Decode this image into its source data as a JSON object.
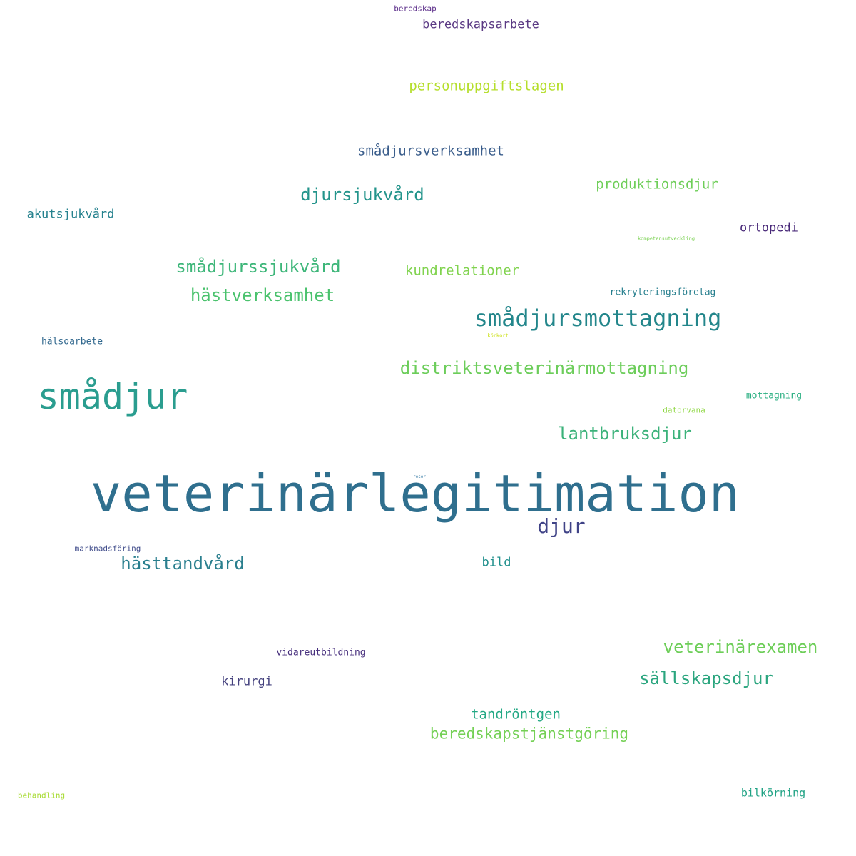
{
  "word_cloud": {
    "words": [
      {
        "text": "veterinärlegitimation",
        "color": "#2f6f8e"
      },
      {
        "text": "smådjur",
        "color": "#2a9d8f"
      },
      {
        "text": "smådjursmottagning",
        "color": "#23868b"
      },
      {
        "text": "distriktsveterinärmottagning",
        "color": "#6ccd5a"
      },
      {
        "text": "smådjurssjukvård",
        "color": "#3db679"
      },
      {
        "text": "lantbruksdjur",
        "color": "#3bb27a"
      },
      {
        "text": "veterinärexamen",
        "color": "#6dce58"
      },
      {
        "text": "sällskapsdjur",
        "color": "#2aa57e"
      },
      {
        "text": "djursjukvård",
        "color": "#23948b"
      },
      {
        "text": "hästverksamhet",
        "color": "#4ac26d"
      },
      {
        "text": "hästtandvård",
        "color": "#2a7f8e"
      },
      {
        "text": "beredskapstjänstgöring",
        "color": "#74d055"
      },
      {
        "text": "djur",
        "color": "#404387"
      },
      {
        "text": "personuppgiftslagen",
        "color": "#b5de2b"
      },
      {
        "text": "smådjursverksamhet",
        "color": "#3b5e8c"
      },
      {
        "text": "produktionsdjur",
        "color": "#6ece58"
      },
      {
        "text": "kundrelationer",
        "color": "#80d34e"
      },
      {
        "text": "tandröntgen",
        "color": "#22a884"
      },
      {
        "text": "beredskapsarbete",
        "color": "#5b3a84"
      },
      {
        "text": "akutsjukvård",
        "color": "#26828e"
      },
      {
        "text": "ortopedi",
        "color": "#482878"
      },
      {
        "text": "kirurgi",
        "color": "#46437f"
      },
      {
        "text": "bild",
        "color": "#21908d"
      },
      {
        "text": "rekryteringsföretag",
        "color": "#277f8e"
      },
      {
        "text": "bilkörning",
        "color": "#21a385"
      },
      {
        "text": "hälsoarbete",
        "color": "#31688e"
      },
      {
        "text": "mottagning",
        "color": "#28ae80"
      },
      {
        "text": "vidareutbildning",
        "color": "#472f7d"
      },
      {
        "text": "beredskap",
        "color": "#5c2e8a"
      },
      {
        "text": "datorvana",
        "color": "#8fd744"
      },
      {
        "text": "marknadsföring",
        "color": "#3e4a89"
      },
      {
        "text": "behandling",
        "color": "#a8db34"
      },
      {
        "text": "kompetensutveckling",
        "color": "#7ad151"
      },
      {
        "text": "körkort",
        "color": "#cde11d"
      },
      {
        "text": "resor",
        "color": "#3c7fa8"
      }
    ]
  }
}
